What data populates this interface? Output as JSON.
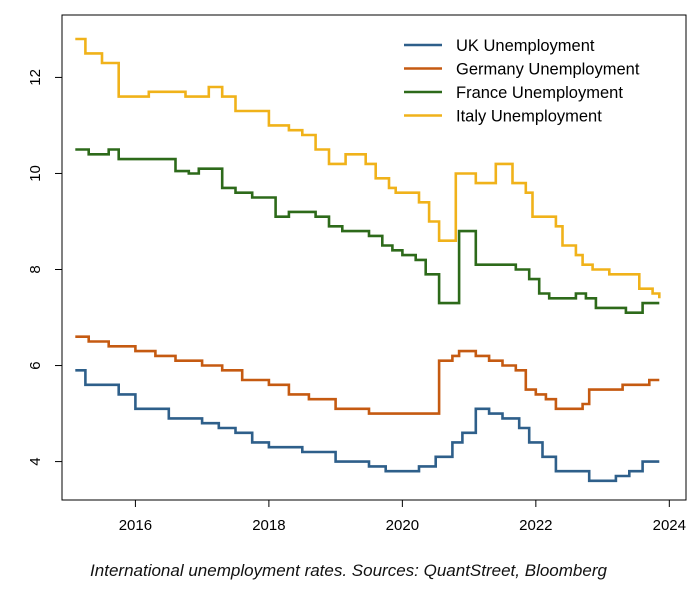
{
  "caption": "International unemployment rates. Sources: QuantStreet, Bloomberg",
  "chart_data": {
    "type": "line",
    "title": "",
    "xlabel": "",
    "ylabel": "",
    "xlim": [
      2014.9,
      2024.25
    ],
    "ylim": [
      3.2,
      13.3
    ],
    "x_ticks": [
      2016,
      2018,
      2020,
      2022,
      2024
    ],
    "y_ticks": [
      4,
      6,
      8,
      10,
      12
    ],
    "grid": false,
    "legend_position": "top-right",
    "step": true,
    "series": [
      {
        "name": "UK Unemployment",
        "color": "#2e5f8a",
        "points": [
          [
            2015.1,
            5.9
          ],
          [
            2015.25,
            5.6
          ],
          [
            2015.5,
            5.6
          ],
          [
            2015.75,
            5.4
          ],
          [
            2016.0,
            5.1
          ],
          [
            2016.5,
            4.9
          ],
          [
            2017.0,
            4.8
          ],
          [
            2017.25,
            4.7
          ],
          [
            2017.5,
            4.6
          ],
          [
            2017.75,
            4.4
          ],
          [
            2018.0,
            4.3
          ],
          [
            2018.5,
            4.2
          ],
          [
            2019.0,
            4.0
          ],
          [
            2019.5,
            3.9
          ],
          [
            2019.75,
            3.8
          ],
          [
            2020.0,
            3.8
          ],
          [
            2020.25,
            3.9
          ],
          [
            2020.5,
            4.1
          ],
          [
            2020.75,
            4.4
          ],
          [
            2020.9,
            4.6
          ],
          [
            2021.1,
            5.1
          ],
          [
            2021.3,
            5.0
          ],
          [
            2021.5,
            4.9
          ],
          [
            2021.75,
            4.7
          ],
          [
            2021.9,
            4.4
          ],
          [
            2022.1,
            4.1
          ],
          [
            2022.3,
            3.8
          ],
          [
            2022.6,
            3.8
          ],
          [
            2022.8,
            3.6
          ],
          [
            2023.0,
            3.6
          ],
          [
            2023.2,
            3.7
          ],
          [
            2023.4,
            3.8
          ],
          [
            2023.6,
            4.0
          ],
          [
            2023.85,
            4.0
          ]
        ]
      },
      {
        "name": "Germany Unemployment",
        "color": "#c55a11",
        "points": [
          [
            2015.1,
            6.6
          ],
          [
            2015.3,
            6.5
          ],
          [
            2015.6,
            6.4
          ],
          [
            2016.0,
            6.3
          ],
          [
            2016.3,
            6.2
          ],
          [
            2016.6,
            6.1
          ],
          [
            2017.0,
            6.0
          ],
          [
            2017.3,
            5.9
          ],
          [
            2017.6,
            5.7
          ],
          [
            2018.0,
            5.6
          ],
          [
            2018.3,
            5.4
          ],
          [
            2018.6,
            5.3
          ],
          [
            2019.0,
            5.1
          ],
          [
            2019.5,
            5.0
          ],
          [
            2019.9,
            5.0
          ],
          [
            2020.3,
            5.0
          ],
          [
            2020.55,
            6.1
          ],
          [
            2020.75,
            6.2
          ],
          [
            2020.85,
            6.3
          ],
          [
            2021.0,
            6.3
          ],
          [
            2021.1,
            6.2
          ],
          [
            2021.3,
            6.1
          ],
          [
            2021.5,
            6.0
          ],
          [
            2021.7,
            5.9
          ],
          [
            2021.85,
            5.5
          ],
          [
            2022.0,
            5.4
          ],
          [
            2022.15,
            5.3
          ],
          [
            2022.3,
            5.1
          ],
          [
            2022.6,
            5.1
          ],
          [
            2022.7,
            5.2
          ],
          [
            2022.8,
            5.5
          ],
          [
            2023.0,
            5.5
          ],
          [
            2023.3,
            5.6
          ],
          [
            2023.55,
            5.6
          ],
          [
            2023.7,
            5.7
          ],
          [
            2023.85,
            5.7
          ]
        ]
      },
      {
        "name": "France Unemployment",
        "color": "#2d6a1a",
        "points": [
          [
            2015.1,
            10.5
          ],
          [
            2015.3,
            10.4
          ],
          [
            2015.5,
            10.4
          ],
          [
            2015.6,
            10.5
          ],
          [
            2015.75,
            10.3
          ],
          [
            2016.0,
            10.3
          ],
          [
            2016.5,
            10.3
          ],
          [
            2016.6,
            10.05
          ],
          [
            2016.8,
            10.0
          ],
          [
            2016.95,
            10.1
          ],
          [
            2017.15,
            10.1
          ],
          [
            2017.3,
            9.7
          ],
          [
            2017.5,
            9.6
          ],
          [
            2017.75,
            9.5
          ],
          [
            2018.0,
            9.5
          ],
          [
            2018.1,
            9.1
          ],
          [
            2018.3,
            9.2
          ],
          [
            2018.5,
            9.2
          ],
          [
            2018.7,
            9.1
          ],
          [
            2018.9,
            8.9
          ],
          [
            2019.1,
            8.8
          ],
          [
            2019.3,
            8.8
          ],
          [
            2019.5,
            8.7
          ],
          [
            2019.7,
            8.5
          ],
          [
            2019.85,
            8.4
          ],
          [
            2020.0,
            8.3
          ],
          [
            2020.2,
            8.2
          ],
          [
            2020.35,
            7.9
          ],
          [
            2020.55,
            7.3
          ],
          [
            2020.75,
            7.3
          ],
          [
            2020.85,
            8.8
          ],
          [
            2021.0,
            8.8
          ],
          [
            2021.1,
            8.1
          ],
          [
            2021.3,
            8.1
          ],
          [
            2021.5,
            8.1
          ],
          [
            2021.7,
            8.0
          ],
          [
            2021.8,
            8.0
          ],
          [
            2021.9,
            7.8
          ],
          [
            2022.05,
            7.5
          ],
          [
            2022.2,
            7.4
          ],
          [
            2022.45,
            7.4
          ],
          [
            2022.6,
            7.5
          ],
          [
            2022.75,
            7.4
          ],
          [
            2022.9,
            7.2
          ],
          [
            2023.0,
            7.2
          ],
          [
            2023.2,
            7.2
          ],
          [
            2023.35,
            7.1
          ],
          [
            2023.6,
            7.3
          ],
          [
            2023.85,
            7.3
          ]
        ]
      },
      {
        "name": "Italy Unemployment",
        "color": "#f0b21a",
        "points": [
          [
            2015.1,
            12.8
          ],
          [
            2015.25,
            12.5
          ],
          [
            2015.5,
            12.3
          ],
          [
            2015.75,
            11.6
          ],
          [
            2016.0,
            11.6
          ],
          [
            2016.2,
            11.7
          ],
          [
            2016.5,
            11.7
          ],
          [
            2016.75,
            11.6
          ],
          [
            2017.0,
            11.6
          ],
          [
            2017.1,
            11.8
          ],
          [
            2017.3,
            11.6
          ],
          [
            2017.5,
            11.3
          ],
          [
            2017.8,
            11.3
          ],
          [
            2018.0,
            11.0
          ],
          [
            2018.3,
            10.9
          ],
          [
            2018.5,
            10.8
          ],
          [
            2018.7,
            10.5
          ],
          [
            2018.9,
            10.2
          ],
          [
            2019.0,
            10.2
          ],
          [
            2019.15,
            10.4
          ],
          [
            2019.3,
            10.4
          ],
          [
            2019.45,
            10.2
          ],
          [
            2019.6,
            9.9
          ],
          [
            2019.8,
            9.7
          ],
          [
            2019.9,
            9.6
          ],
          [
            2020.1,
            9.6
          ],
          [
            2020.25,
            9.4
          ],
          [
            2020.4,
            9.0
          ],
          [
            2020.55,
            8.6
          ],
          [
            2020.75,
            8.6
          ],
          [
            2020.8,
            10.0
          ],
          [
            2021.0,
            10.0
          ],
          [
            2021.1,
            9.8
          ],
          [
            2021.3,
            9.8
          ],
          [
            2021.4,
            10.2
          ],
          [
            2021.6,
            10.2
          ],
          [
            2021.65,
            9.8
          ],
          [
            2021.85,
            9.6
          ],
          [
            2021.95,
            9.1
          ],
          [
            2022.2,
            9.1
          ],
          [
            2022.3,
            8.9
          ],
          [
            2022.4,
            8.5
          ],
          [
            2022.6,
            8.3
          ],
          [
            2022.7,
            8.1
          ],
          [
            2022.85,
            8.0
          ],
          [
            2023.0,
            8.0
          ],
          [
            2023.1,
            7.9
          ],
          [
            2023.4,
            7.9
          ],
          [
            2023.55,
            7.6
          ],
          [
            2023.75,
            7.5
          ],
          [
            2023.85,
            7.4
          ]
        ]
      }
    ]
  }
}
